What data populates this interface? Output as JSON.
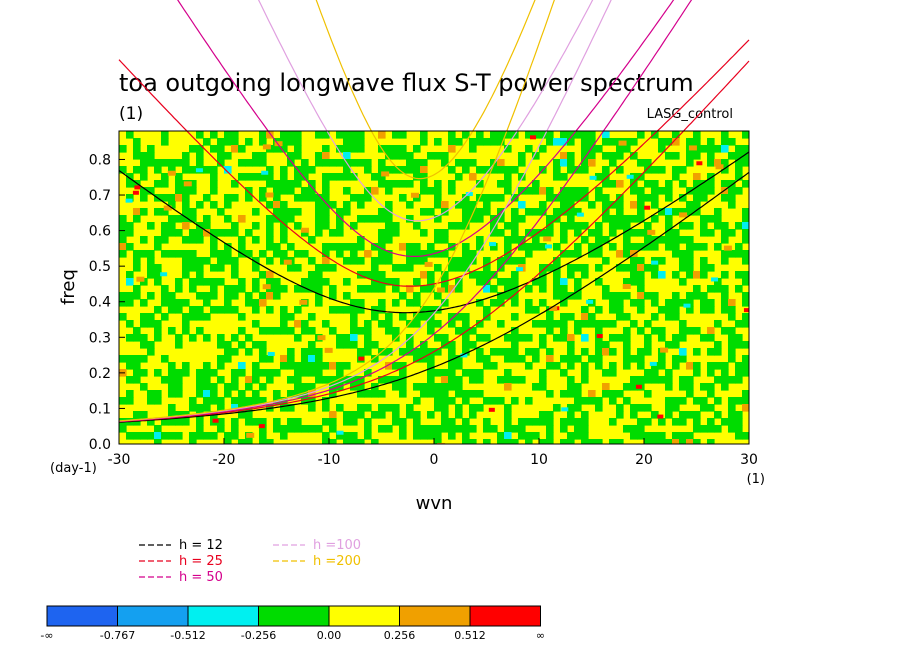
{
  "chart_data": {
    "type": "heatmap",
    "title": "toa outgoing longwave flux S-T power spectrum",
    "subtitle": "(1)",
    "case_label": "LASG_control",
    "xlabel": "wvn",
    "ylabel": "freq",
    "x_unit": "(1)",
    "y_unit": "(day-1)",
    "xlim": [
      -30,
      30
    ],
    "ylim": [
      0,
      0.88
    ],
    "x_ticks": [
      "-30",
      "-20",
      "-10",
      "0",
      "10",
      "20",
      "30"
    ],
    "x_tick_values": [
      -30,
      -20,
      -10,
      0,
      10,
      20,
      30
    ],
    "y_ticks": [
      "0.0",
      "0.1",
      "0.2",
      "0.3",
      "0.4",
      "0.5",
      "0.6",
      "0.7",
      "0.8"
    ],
    "y_tick_values": [
      0,
      0.1,
      0.2,
      0.3,
      0.4,
      0.5,
      0.6,
      0.7,
      0.8
    ],
    "dispersion_curves": [
      {
        "name": "h = 12",
        "color": "#000000",
        "equivalent_depth": 12
      },
      {
        "name": "h = 25",
        "color": "#e8001e",
        "equivalent_depth": 25
      },
      {
        "name": "h = 50",
        "color": "#d4008c",
        "equivalent_depth": 50
      },
      {
        "name": "h =100",
        "color": "#e0a0e0",
        "equivalent_depth": 100
      },
      {
        "name": "h =200",
        "color": "#f0c000",
        "equivalent_depth": 200
      }
    ],
    "colorbar": {
      "labels": [
        "-∞",
        "-0.767",
        "-0.512",
        "-0.256",
        "0.00",
        "0.256",
        "0.512",
        "∞"
      ],
      "colors": [
        "#1e64f0",
        "#14a0f0",
        "#00f0f0",
        "#00dc00",
        "#ffff00",
        "#f0a000",
        "#ff0000"
      ]
    },
    "field_note": "dominant values between -0.256 and 0.256 (green/yellow), scattered orange and red spots, a few cyan spots"
  }
}
